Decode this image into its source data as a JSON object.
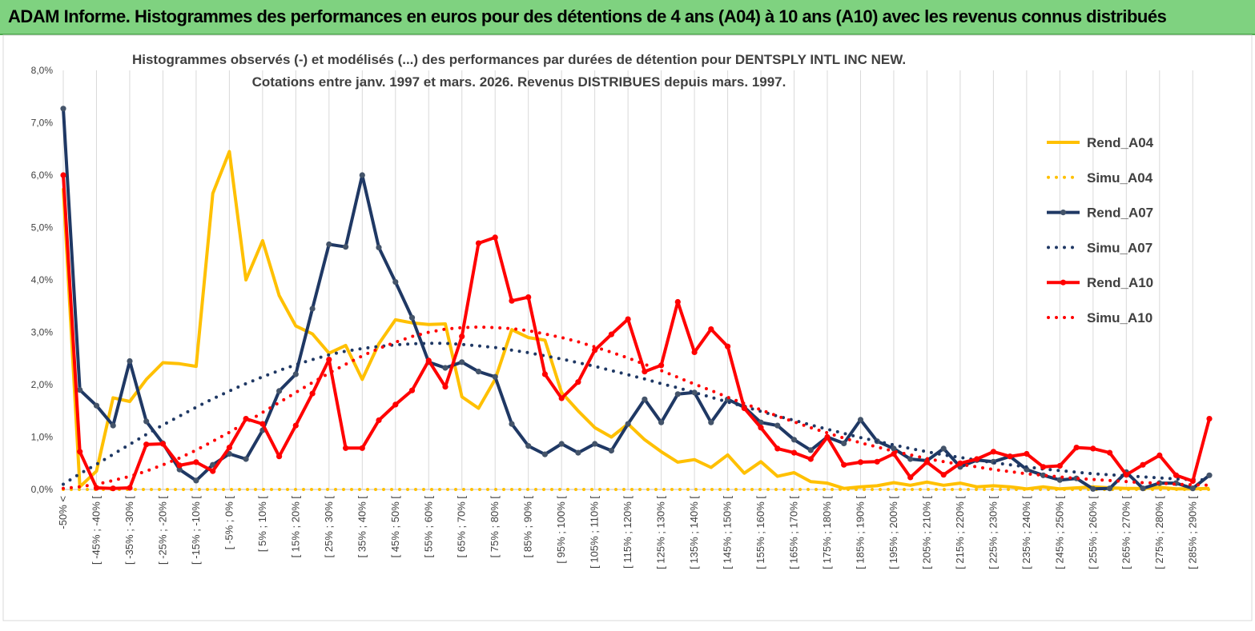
{
  "banner": {
    "title": "ADAM Informe. Histogrammes des performances en euros pour des détentions de 4 ans (A04) à 10 ans (A10) avec les revenus connus distribués",
    "background": "#7fd280"
  },
  "chart_data": {
    "type": "line",
    "title_lines": [
      "Histogrammes observés (-) et modélisés (...) des performances par durées de détention pour DENTSPLY INTL INC NEW.",
      "Cotations entre janv. 1997 et mars. 2026.  Revenus DISTRIBUES depuis mars. 1997."
    ],
    "ylim": [
      0,
      8
    ],
    "y_ticks": [
      "0,0%",
      "1,0%",
      "2,0%",
      "3,0%",
      "4,0%",
      "5,0%",
      "6,0%",
      "7,0%",
      "8,0%"
    ],
    "grid": "vertical",
    "legend_position": "right",
    "x_labels": [
      "-50% <",
      "[ -45% ; -40% [",
      "[ -35% ; -30% [",
      "[ -25% ; -20% [",
      "[ -15% ; -10% [",
      "[ -5% ; 0% [",
      "[ 5% ; 10% [",
      "[ 15% ; 20% [",
      "[ 25% ; 30% [",
      "[ 35% ; 40% [",
      "[ 45% ; 50% [",
      "[ 55% ; 60% [",
      "[ 65% ; 70% [",
      "[ 75% ; 80% [",
      "[ 85% ; 90% [",
      "[ 95% ; 100% [",
      "[ 105% ; 110% [",
      "[ 115% ; 120% [",
      "[ 125% ; 130% [",
      "[ 135% ; 140% [",
      "[ 145% ; 150% [",
      "[ 155% ; 160% [",
      "[ 165% ; 170% [",
      "[ 175% ; 180% [",
      "[ 185% ; 190% [",
      "[ 195% ; 200% [",
      "[ 205% ; 210% [",
      "[ 215% ; 220% [",
      "[ 225% ; 230% [",
      "[ 235% ; 240% [",
      "[ 245% ; 250% [",
      "[ 255% ; 260% [",
      "[ 265% ; 270% [",
      "[ 275% ; 280% [",
      "[ 285% ; 290% ["
    ],
    "x_count": 70,
    "series": [
      {
        "name": "Rend_A04",
        "color": "#ffc000",
        "style": "solid",
        "markers": false,
        "values": [
          5.75,
          0.05,
          0.35,
          1.75,
          1.68,
          2.1,
          2.42,
          2.4,
          2.35,
          5.65,
          6.45,
          4.0,
          4.75,
          3.7,
          3.12,
          2.97,
          2.6,
          2.75,
          2.1,
          2.78,
          3.24,
          3.18,
          3.15,
          3.16,
          1.77,
          1.55,
          2.1,
          3.05,
          2.9,
          2.85,
          1.85,
          1.5,
          1.18,
          1.0,
          1.25,
          0.95,
          0.72,
          0.52,
          0.57,
          0.42,
          0.66,
          0.31,
          0.53,
          0.25,
          0.32,
          0.15,
          0.12,
          0.02,
          0.05,
          0.07,
          0.13,
          0.08,
          0.14,
          0.08,
          0.12,
          0.05,
          0.07,
          0.05,
          0.01,
          0.05,
          0.01,
          0.03,
          0.05,
          0.03,
          0.02,
          0.02,
          0.04,
          0.01,
          0.01,
          0.02
        ]
      },
      {
        "name": "Simu_A04",
        "color": "#ffc000",
        "style": "dotted",
        "markers": false,
        "values": [
          0,
          0,
          0,
          0,
          0,
          0,
          0,
          0,
          0,
          0,
          0,
          0,
          0,
          0,
          0,
          0,
          0,
          0,
          0,
          0,
          0,
          0,
          0,
          0,
          0,
          0,
          0,
          0,
          0,
          0,
          0,
          0,
          0,
          0,
          0,
          0,
          0,
          0,
          0,
          0,
          0,
          0,
          0,
          0,
          0,
          0,
          0,
          0,
          0,
          0,
          0,
          0,
          0,
          0,
          0,
          0,
          0,
          0,
          0,
          0,
          0,
          0,
          0,
          0,
          0,
          0,
          0,
          0,
          0,
          0
        ]
      },
      {
        "name": "Rend_A07",
        "color": "#1f3864",
        "style": "solid",
        "markers": true,
        "values": [
          7.27,
          1.9,
          1.6,
          1.22,
          2.45,
          1.3,
          0.88,
          0.38,
          0.17,
          0.47,
          0.68,
          0.58,
          1.13,
          1.88,
          2.2,
          3.45,
          4.68,
          4.63,
          6.0,
          4.62,
          3.96,
          3.28,
          2.43,
          2.32,
          2.43,
          2.25,
          2.15,
          1.25,
          0.83,
          0.67,
          0.87,
          0.7,
          0.87,
          0.74,
          1.25,
          1.72,
          1.28,
          1.82,
          1.85,
          1.28,
          1.72,
          1.57,
          1.28,
          1.22,
          0.95,
          0.75,
          1.0,
          0.88,
          1.33,
          0.92,
          0.78,
          0.58,
          0.55,
          0.78,
          0.43,
          0.56,
          0.53,
          0.63,
          0.38,
          0.27,
          0.18,
          0.21,
          0.01,
          0.02,
          0.33,
          0.02,
          0.12,
          0.12,
          0.02,
          0.27
        ]
      },
      {
        "name": "Simu_A07",
        "color": "#1f3864",
        "style": "dotted",
        "markers": false,
        "values": [
          0.1,
          0.3,
          0.48,
          0.67,
          0.86,
          1.05,
          1.23,
          1.4,
          1.57,
          1.73,
          1.88,
          2.02,
          2.15,
          2.27,
          2.38,
          2.48,
          2.57,
          2.64,
          2.69,
          2.73,
          2.76,
          2.78,
          2.79,
          2.79,
          2.77,
          2.74,
          2.71,
          2.66,
          2.61,
          2.55,
          2.49,
          2.42,
          2.35,
          2.27,
          2.19,
          2.11,
          2.02,
          1.94,
          1.85,
          1.76,
          1.67,
          1.58,
          1.49,
          1.4,
          1.32,
          1.23,
          1.15,
          1.07,
          0.99,
          0.92,
          0.85,
          0.78,
          0.72,
          0.66,
          0.61,
          0.56,
          0.51,
          0.47,
          0.43,
          0.39,
          0.36,
          0.33,
          0.3,
          0.28,
          0.26,
          0.24,
          0.22,
          0.2,
          0.19,
          0.18
        ]
      },
      {
        "name": "Rend_A10",
        "color": "#ff0000",
        "style": "solid",
        "markers": true,
        "values": [
          6.0,
          0.72,
          0.03,
          0.02,
          0.03,
          0.86,
          0.87,
          0.46,
          0.52,
          0.35,
          0.8,
          1.35,
          1.25,
          0.63,
          1.22,
          1.83,
          2.48,
          0.79,
          0.79,
          1.32,
          1.62,
          1.89,
          2.46,
          1.96,
          2.92,
          4.7,
          4.81,
          3.6,
          3.67,
          2.2,
          1.74,
          2.05,
          2.66,
          2.96,
          3.25,
          2.25,
          2.37,
          3.58,
          2.62,
          3.06,
          2.73,
          1.55,
          1.18,
          0.78,
          0.7,
          0.58,
          1.0,
          0.47,
          0.52,
          0.53,
          0.68,
          0.23,
          0.52,
          0.28,
          0.5,
          0.58,
          0.72,
          0.63,
          0.68,
          0.43,
          0.45,
          0.8,
          0.78,
          0.7,
          0.28,
          0.47,
          0.65,
          0.27,
          0.16,
          1.35
        ]
      },
      {
        "name": "Simu_A10",
        "color": "#ff0000",
        "style": "dotted",
        "markers": false,
        "values": [
          0.02,
          0.05,
          0.1,
          0.17,
          0.25,
          0.35,
          0.47,
          0.6,
          0.75,
          0.92,
          1.09,
          1.28,
          1.47,
          1.66,
          1.85,
          2.04,
          2.22,
          2.39,
          2.55,
          2.69,
          2.81,
          2.92,
          3.0,
          3.06,
          3.09,
          3.1,
          3.09,
          3.07,
          3.03,
          2.97,
          2.9,
          2.82,
          2.72,
          2.62,
          2.51,
          2.39,
          2.27,
          2.14,
          2.01,
          1.89,
          1.76,
          1.64,
          1.52,
          1.4,
          1.29,
          1.18,
          1.08,
          0.98,
          0.89,
          0.81,
          0.73,
          0.66,
          0.59,
          0.53,
          0.48,
          0.43,
          0.38,
          0.34,
          0.3,
          0.27,
          0.24,
          0.21,
          0.19,
          0.17,
          0.15,
          0.13,
          0.12,
          0.1,
          0.09,
          0.08
        ]
      }
    ]
  }
}
